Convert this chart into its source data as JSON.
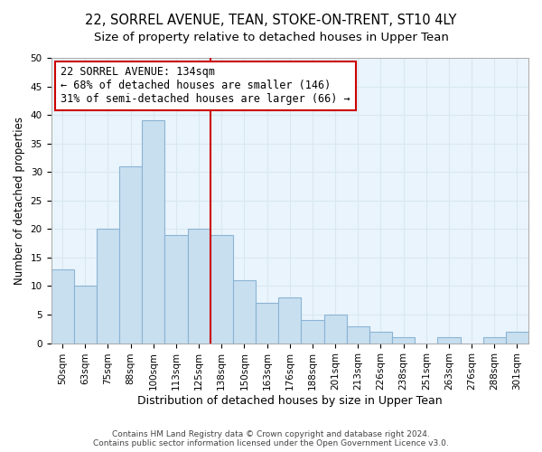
{
  "title1": "22, SORREL AVENUE, TEAN, STOKE-ON-TRENT, ST10 4LY",
  "title2": "Size of property relative to detached houses in Upper Tean",
  "xlabel": "Distribution of detached houses by size in Upper Tean",
  "ylabel": "Number of detached properties",
  "bar_labels": [
    "50sqm",
    "63sqm",
    "75sqm",
    "88sqm",
    "100sqm",
    "113sqm",
    "125sqm",
    "138sqm",
    "150sqm",
    "163sqm",
    "176sqm",
    "188sqm",
    "201sqm",
    "213sqm",
    "226sqm",
    "238sqm",
    "251sqm",
    "263sqm",
    "276sqm",
    "288sqm",
    "301sqm"
  ],
  "bar_heights": [
    13,
    10,
    20,
    31,
    39,
    19,
    20,
    19,
    11,
    7,
    8,
    4,
    5,
    3,
    2,
    1,
    0,
    1,
    0,
    1,
    2
  ],
  "bar_color": "#c8dff0",
  "bar_edge_color": "#8ab4d4",
  "vline_color": "#cc0000",
  "annotation_title": "22 SORREL AVENUE: 134sqm",
  "annotation_line1": "← 68% of detached houses are smaller (146)",
  "annotation_line2": "31% of semi-detached houses are larger (66) →",
  "box_edge_color": "#cc0000",
  "ylim": [
    0,
    50
  ],
  "yticks": [
    0,
    5,
    10,
    15,
    20,
    25,
    30,
    35,
    40,
    45,
    50
  ],
  "footer1": "Contains HM Land Registry data © Crown copyright and database right 2024.",
  "footer2": "Contains public sector information licensed under the Open Government Licence v3.0.",
  "title1_fontsize": 10.5,
  "title2_fontsize": 9.5,
  "xlabel_fontsize": 9,
  "ylabel_fontsize": 8.5,
  "tick_fontsize": 7.5,
  "footer_fontsize": 6.5,
  "annotation_fontsize": 8.5,
  "grid_color": "#d8e8f0",
  "background_color": "#eaf4fc"
}
